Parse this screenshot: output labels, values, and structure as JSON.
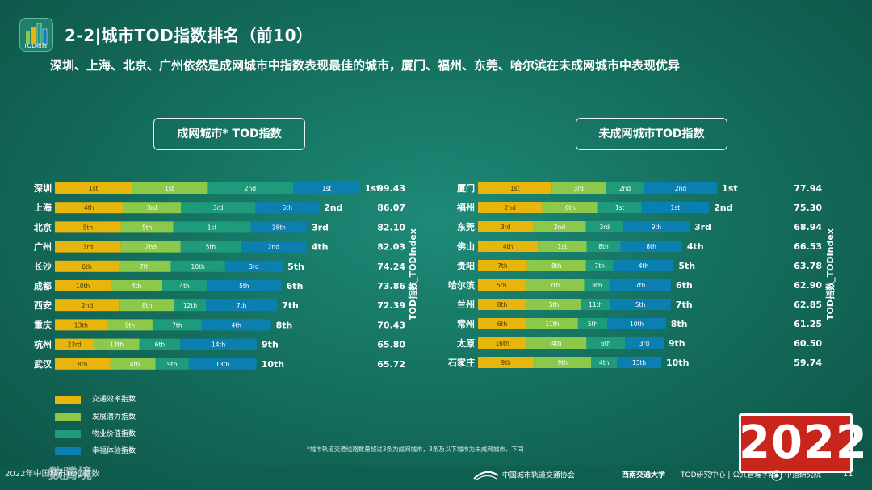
{
  "header": {
    "logo_text": "TOD指数",
    "title": "2-2|城市TOD指数排名（前10）",
    "subtitle": "深圳、上海、北京、广州依然是成网城市中指数表现最佳的城市，厦门、福州、东莞、哈尔滨在未成网城市中表现优异"
  },
  "legend": [
    {
      "label": "交通效率指数",
      "color": "#e8b50c"
    },
    {
      "label": "发展潜力指数",
      "color": "#8cc84a"
    },
    {
      "label": "物业价值指数",
      "color": "#1e9b7a"
    },
    {
      "label": "幸福体验指数",
      "color": "#0a7fb0"
    }
  ],
  "colors": {
    "seg1": "#e8b50c",
    "seg2": "#8cc84a",
    "seg3": "#1e9b7a",
    "seg4": "#0a7fb0",
    "year_bg": "#c8251c"
  },
  "chart_data": [
    {
      "type": "bar",
      "stacked": true,
      "orientation": "horizontal",
      "title": "成网城市* TOD指数",
      "ylabel": "TOD指数_TODIndex",
      "categories": [
        "深圳",
        "上海",
        "北京",
        "广州",
        "长沙",
        "成都",
        "西安",
        "重庆",
        "杭州",
        "武汉"
      ],
      "series": [
        {
          "name": "交通效率指数",
          "values": [
            25.1,
            22.21,
            21.55,
            21.5,
            20.8,
            18.22,
            21.11,
            17.03,
            12.71,
            18.02
          ],
          "rank_labels": [
            "1st",
            "4th",
            "5th",
            "3rd",
            "6th",
            "10th",
            "2nd",
            "13th",
            "23rd",
            "8th"
          ]
        },
        {
          "name": "发展潜力指数",
          "values": [
            24.5,
            18.85,
            17.0,
            19.5,
            16.95,
            16.79,
            17.82,
            14.8,
            14.8,
            14.81
          ]
        },
        {
          "name": "物业价值指数",
          "values": [
            28.1,
            24.31,
            25.3,
            19.53,
            17.75,
            14.5,
            10.3,
            16.0,
            13.35,
            10.8
          ]
        },
        {
          "name": "幸福体验指数",
          "values": [
            21.73,
            20.7,
            18.25,
            21.5,
            18.74,
            24.35,
            23.16,
            22.6,
            24.94,
            22.09
          ]
        }
      ],
      "segment_labels": [
        [
          "1st",
          "1st",
          "2nd",
          "1st"
        ],
        [
          "4th",
          "3rd",
          "3rd",
          "6th"
        ],
        [
          "5th",
          "5th",
          "1st",
          "18th"
        ],
        [
          "3rd",
          "2nd",
          "5th",
          "2nd"
        ],
        [
          "6th",
          "7th",
          "10th",
          "3rd"
        ],
        [
          "10th",
          "4th",
          "4th",
          "5th"
        ],
        [
          "2nd",
          "8th",
          "12th",
          "7th"
        ],
        [
          "13th",
          "9th",
          "7th",
          "4th"
        ],
        [
          "23rd",
          "13th",
          "6th",
          "14th"
        ],
        [
          "8th",
          "14th",
          "9th",
          "13th"
        ]
      ],
      "overall_ranks": [
        "1st",
        "2nd",
        "3rd",
        "4th",
        "5th",
        "6th",
        "7th",
        "8th",
        "9th",
        "10th"
      ],
      "totals": [
        "99.43",
        "86.07",
        "82.10",
        "82.03",
        "74.24",
        "73.86",
        "72.39",
        "70.43",
        "65.80",
        "65.72"
      ],
      "total_values": [
        99.43,
        86.07,
        82.1,
        82.03,
        74.24,
        73.86,
        72.39,
        70.43,
        65.8,
        65.72
      ]
    },
    {
      "type": "bar",
      "stacked": true,
      "orientation": "horizontal",
      "title": "未成网城市TOD指数",
      "ylabel": "TOD指数_TODIndex",
      "categories": [
        "厦门",
        "福州",
        "东莞",
        "佛山",
        "贵阳",
        "哈尔滨",
        "兰州",
        "常州",
        "太原",
        "石家庄"
      ],
      "series": [
        {
          "name": "交通效率指数",
          "values": [
            24.0,
            20.95,
            18.0,
            19.5,
            16.0,
            15.4,
            15.8,
            15.8,
            15.85,
            18.2
          ]
        },
        {
          "name": "发展潜力指数",
          "values": [
            17.6,
            18.2,
            17.15,
            15.93,
            19.2,
            19.2,
            17.9,
            16.8,
            19.5,
            18.7
          ]
        },
        {
          "name": "物业价值指数",
          "values": [
            12.6,
            14.15,
            12.2,
            11.0,
            8.9,
            8.4,
            9.3,
            9.6,
            12.6,
            8.4
          ]
        },
        {
          "name": "幸福体验指数",
          "values": [
            23.74,
            22.0,
            21.59,
            20.1,
            19.68,
            19.9,
            19.85,
            19.05,
            12.55,
            14.44
          ]
        }
      ],
      "segment_labels": [
        [
          "1st",
          "3rd",
          "2nd",
          "2nd"
        ],
        [
          "2nd",
          "6th",
          "1st",
          "1st"
        ],
        [
          "3rd",
          "2nd",
          "3rd",
          "9th"
        ],
        [
          "4th",
          "1st",
          "8th",
          "8th"
        ],
        [
          "7th",
          "8th",
          "7th",
          "4th"
        ],
        [
          "5th",
          "7th",
          "9th",
          "7th"
        ],
        [
          "8th",
          "5th",
          "11th",
          "5th"
        ],
        [
          "6th",
          "11th",
          "5th",
          "10th"
        ],
        [
          "16th",
          "4th",
          "6th",
          "3rd"
        ],
        [
          "9th",
          "9th",
          "4th",
          "13th"
        ]
      ],
      "overall_ranks": [
        "1st",
        "2nd",
        "3rd",
        "4th",
        "5th",
        "6th",
        "7th",
        "8th",
        "9th",
        "10th"
      ],
      "totals": [
        "77.94",
        "75.30",
        "68.94",
        "66.53",
        "63.78",
        "62.90",
        "62.85",
        "61.25",
        "60.50",
        "59.74"
      ],
      "total_values": [
        77.94,
        75.3,
        68.94,
        66.53,
        63.78,
        62.9,
        62.85,
        61.25,
        60.5,
        59.74
      ]
    }
  ],
  "footnote": "*城市轨道交通线路数量超过3条为成网城市，3条及以下城市为未成网城市，下同",
  "year_badge": "2022",
  "footer": {
    "left_text": "2022年中国城市TOD指数",
    "left_big": "数腾境",
    "logo1": "中国城市轨道交通协会",
    "logo2": "西南交通大学",
    "logo3": "TOD研究中心 | 公共管理学院",
    "logo4": "中指研究院",
    "page_number": "11"
  }
}
